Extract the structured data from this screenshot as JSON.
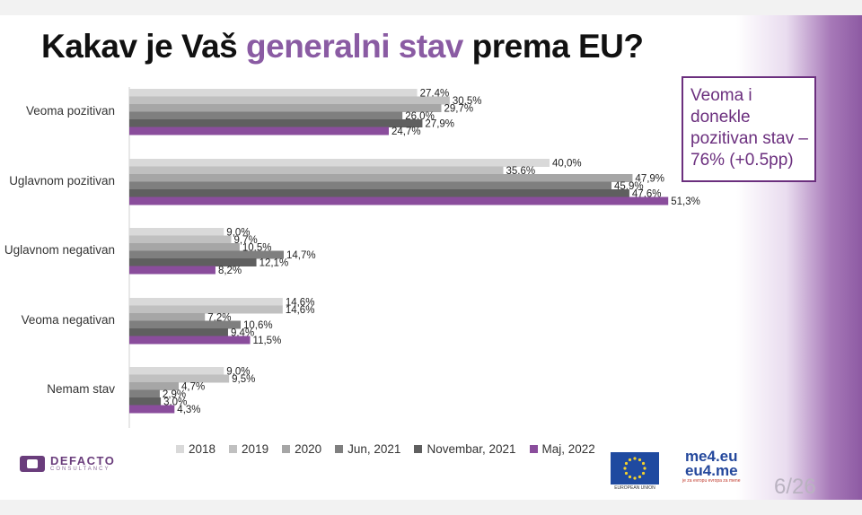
{
  "title": {
    "part1": "Kakav je Vaš ",
    "highlight": "generalni stav",
    "part2": " prema EU?"
  },
  "callout": {
    "text": "Veoma i donekle pozitivan stav – 76%  (+0.5pp)"
  },
  "footer": {
    "defacto": "DEFACTO",
    "defacto_sub": "CONSULTANCY",
    "eu_caption": "EUROPEAN UNION",
    "me4eu_line1": "me4.eu",
    "me4eu_line2": "eu4.me",
    "me4eu_tagline": "je za evropu evropa za mene",
    "page": "6/26"
  },
  "chart_data": {
    "type": "bar",
    "orientation": "horizontal",
    "title": "Kakav je Vaš generalni stav prema EU?",
    "categories": [
      "Veoma pozitivan",
      "Uglavnom pozitivan",
      "Uglavnom negativan",
      "Veoma negativan",
      "Nemam stav"
    ],
    "series": [
      {
        "name": "2018",
        "color": "#d9d9d9",
        "values": [
          27.4,
          40.0,
          9.0,
          14.6,
          9.0
        ],
        "labels": [
          "27,4%",
          "40,0%",
          "9,0%",
          "14,6%",
          "9,0%"
        ]
      },
      {
        "name": "2019",
        "color": "#c0c0c0",
        "values": [
          30.5,
          35.6,
          9.7,
          14.6,
          9.5
        ],
        "labels": [
          "30,5%",
          "35,6%",
          "9,7%",
          "14,6%",
          "9,5%"
        ]
      },
      {
        "name": "2020",
        "color": "#a6a6a6",
        "values": [
          29.7,
          47.9,
          10.5,
          7.2,
          4.7
        ],
        "labels": [
          "29,7%",
          "47,9%",
          "10,5%",
          "7,2%",
          "4,7%"
        ]
      },
      {
        "name": "Jun, 2021",
        "color": "#7f7f7f",
        "values": [
          26.0,
          45.9,
          14.7,
          10.6,
          2.9
        ],
        "labels": [
          "26,0%",
          "45,9%",
          "14,7%",
          "10,6%",
          "2,9%"
        ]
      },
      {
        "name": "Novembar, 2021",
        "color": "#5f5f5f",
        "values": [
          27.9,
          47.6,
          12.1,
          9.4,
          3.0
        ],
        "labels": [
          "27,9%",
          "47,6%",
          "12,1%",
          "9,4%",
          "3,0%"
        ]
      },
      {
        "name": "Maj, 2022",
        "color": "#8a4d9c",
        "values": [
          24.7,
          51.3,
          8.2,
          11.5,
          4.3
        ],
        "labels": [
          "24,7%",
          "51,3%",
          "8,2%",
          "11,5%",
          "4,3%"
        ]
      }
    ],
    "xlim": [
      0,
      51.3
    ],
    "legend": "bottom",
    "grid": false
  }
}
